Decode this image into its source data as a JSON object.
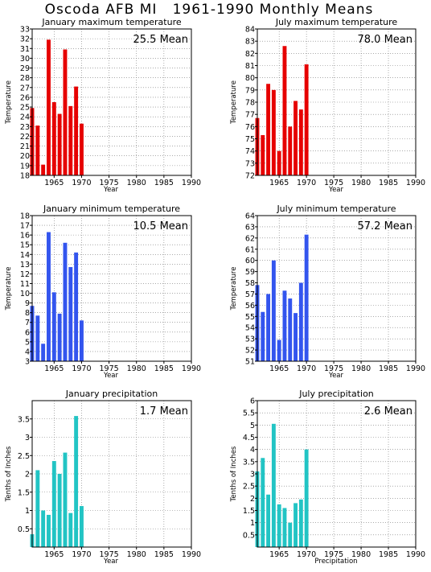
{
  "page_title": "Oscoda AFB MI   1961-1990 Monthly Means",
  "chart_data": [
    {
      "type": "bar",
      "title": "January maximum temperature",
      "xlabel": "Year",
      "ylabel": "Temperature",
      "mean_value": "25.5",
      "mean_word": "Mean",
      "color": "#e60000",
      "xlim": [
        1961,
        1990
      ],
      "xticks": [
        1965,
        1970,
        1975,
        1980,
        1985,
        1990
      ],
      "ylim": [
        18,
        33
      ],
      "yticks": [
        18,
        19,
        20,
        21,
        22,
        23,
        24,
        25,
        26,
        27,
        28,
        29,
        30,
        31,
        32,
        33
      ],
      "x": [
        1961,
        1962,
        1963,
        1964,
        1965,
        1966,
        1967,
        1968,
        1969,
        1970
      ],
      "values": [
        24.9,
        23.1,
        19.1,
        31.9,
        25.5,
        24.3,
        30.9,
        25.1,
        27.1,
        23.3
      ]
    },
    {
      "type": "bar",
      "title": "July maximum temperature",
      "xlabel": "Year",
      "ylabel": "Temperature",
      "mean_value": "78.0",
      "mean_word": "Mean",
      "color": "#e60000",
      "xlim": [
        1961,
        1990
      ],
      "xticks": [
        1965,
        1970,
        1975,
        1980,
        1985,
        1990
      ],
      "ylim": [
        72,
        84
      ],
      "yticks": [
        72,
        73,
        74,
        75,
        76,
        77,
        78,
        79,
        80,
        81,
        82,
        83,
        84
      ],
      "x": [
        1961,
        1962,
        1963,
        1964,
        1965,
        1966,
        1967,
        1968,
        1969,
        1970
      ],
      "values": [
        76.7,
        75.3,
        79.5,
        79.0,
        74.0,
        82.6,
        76.0,
        78.1,
        77.4,
        81.1
      ]
    },
    {
      "type": "bar",
      "title": "January minimum temperature",
      "xlabel": "Year",
      "ylabel": "Temperature",
      "mean_value": "10.5",
      "mean_word": "Mean",
      "color": "#3355ee",
      "xlim": [
        1961,
        1990
      ],
      "xticks": [
        1965,
        1970,
        1975,
        1980,
        1985,
        1990
      ],
      "ylim": [
        3,
        18
      ],
      "yticks": [
        3,
        4,
        5,
        6,
        7,
        8,
        9,
        10,
        11,
        12,
        13,
        14,
        15,
        16,
        17,
        18
      ],
      "x": [
        1961,
        1962,
        1963,
        1964,
        1965,
        1966,
        1967,
        1968,
        1969,
        1970
      ],
      "values": [
        8.7,
        7.7,
        4.8,
        16.3,
        10.1,
        7.9,
        15.2,
        12.7,
        14.2,
        7.2
      ]
    },
    {
      "type": "bar",
      "title": "July minimum temperature",
      "xlabel": "Year",
      "ylabel": "Temperature",
      "mean_value": "57.2",
      "mean_word": "Mean",
      "color": "#3355ee",
      "xlim": [
        1961,
        1990
      ],
      "xticks": [
        1965,
        1970,
        1975,
        1980,
        1985,
        1990
      ],
      "ylim": [
        51,
        64
      ],
      "yticks": [
        51,
        52,
        53,
        54,
        55,
        56,
        57,
        58,
        59,
        60,
        61,
        62,
        63,
        64
      ],
      "x": [
        1961,
        1962,
        1963,
        1964,
        1965,
        1966,
        1967,
        1968,
        1969,
        1970
      ],
      "values": [
        57.8,
        55.4,
        57.0,
        60.0,
        52.9,
        57.3,
        56.6,
        55.3,
        58.0,
        62.3
      ]
    },
    {
      "type": "bar",
      "title": "January precipitation",
      "xlabel": "Year",
      "ylabel": "Tenths of Inches",
      "mean_value": "1.7",
      "mean_word": "Mean",
      "color": "#22c4c4",
      "xlim": [
        1961,
        1990
      ],
      "xticks": [
        1965,
        1970,
        1975,
        1980,
        1985,
        1990
      ],
      "ylim": [
        0,
        4
      ],
      "yticks": [
        0.5,
        1,
        1.5,
        2,
        2.5,
        3,
        3.5
      ],
      "x": [
        1961,
        1962,
        1963,
        1964,
        1965,
        1966,
        1967,
        1968,
        1969,
        1970
      ],
      "values": [
        0.35,
        2.1,
        1.0,
        0.88,
        2.35,
        2.0,
        2.58,
        0.93,
        3.58,
        1.12
      ]
    },
    {
      "type": "bar",
      "title": "July precipitation",
      "xlabel": "Precipitation",
      "ylabel": "Tenths of Inches",
      "mean_value": "2.6",
      "mean_word": "Mean",
      "color": "#22c4c4",
      "xlim": [
        1961,
        1990
      ],
      "xticks": [
        1965,
        1970,
        1975,
        1980,
        1985,
        1990
      ],
      "ylim": [
        0,
        6
      ],
      "yticks": [
        0.5,
        1,
        1.5,
        2,
        2.5,
        3,
        3.5,
        4,
        4.5,
        5,
        5.5,
        6
      ],
      "x": [
        1961,
        1962,
        1963,
        1964,
        1965,
        1966,
        1967,
        1968,
        1969,
        1970
      ],
      "values": [
        3.1,
        3.65,
        2.15,
        5.05,
        1.75,
        1.6,
        1.0,
        1.8,
        1.95,
        4.0
      ]
    }
  ]
}
